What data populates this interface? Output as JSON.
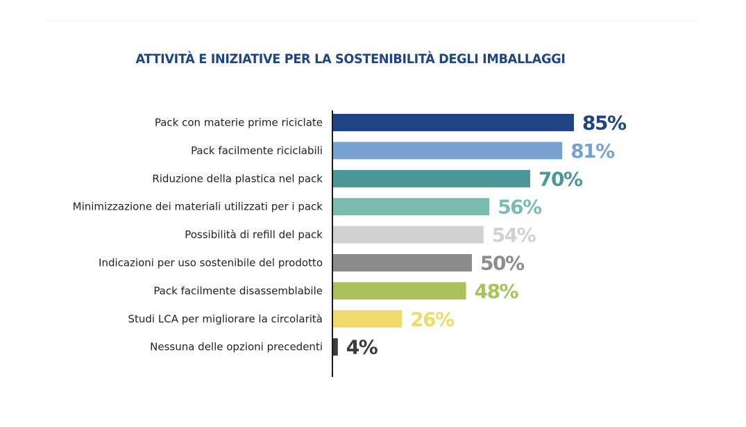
{
  "chart_data": {
    "type": "bar",
    "orientation": "horizontal",
    "title": "ATTIVITÀ E INIZIATIVE PER LA SOSTENIBILITÀ DEGLI IMBALLAGGI",
    "xlabel": "",
    "ylabel": "",
    "xlim": [
      0,
      100
    ],
    "grid": false,
    "categories": [
      "Pack con materie prime riciclate",
      "Pack facilmente riciclabili",
      "Riduzione della plastica nel pack",
      "Minimizzazione dei materiali utilizzati per i pack",
      "Possibilità di refill del pack",
      "Indicazioni per uso sostenibile del prodotto",
      "Pack facilmente disassemblabile",
      "Studi LCA per migliorare la circolarità",
      "Nessuna delle opzioni precedenti"
    ],
    "values": [
      85,
      81,
      70,
      56,
      54,
      50,
      48,
      26,
      4
    ],
    "value_labels": [
      "85%",
      "81%",
      "70%",
      "56%",
      "54%",
      "50%",
      "48%",
      "26%",
      "4%"
    ],
    "colors": [
      "#1F4584",
      "#76A1D1",
      "#4A9699",
      "#7CBCB0",
      "#D1D1D0",
      "#8C8C8C",
      "#A9C25A",
      "#EEDB6B",
      "#3C3C3C"
    ]
  }
}
